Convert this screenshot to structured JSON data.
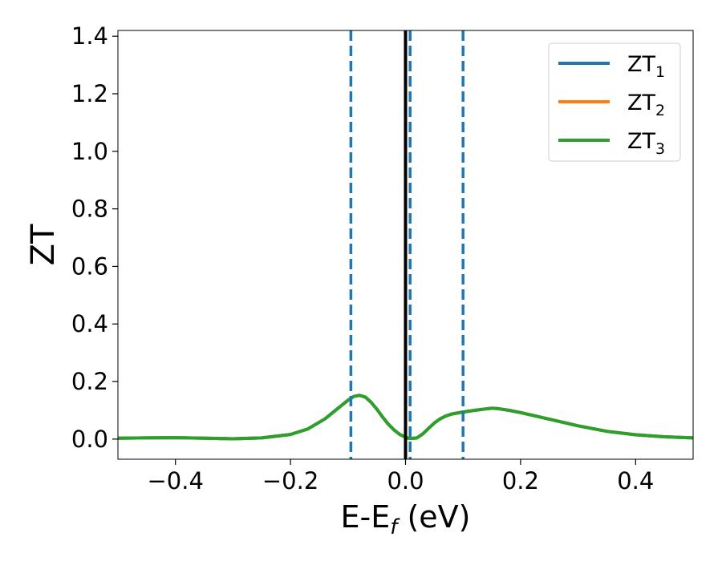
{
  "chart_data": {
    "type": "line",
    "xlabel": {
      "main": "E-E",
      "sub": "f",
      "unit": " (eV)"
    },
    "ylabel": "ZT",
    "xlim": [
      -0.5,
      0.5
    ],
    "ylim": [
      -0.07,
      1.42
    ],
    "xticks": [
      -0.4,
      -0.2,
      0.0,
      0.2,
      0.4
    ],
    "xtick_labels": [
      "−0.4",
      "−0.2",
      "0.0",
      "0.2",
      "0.4"
    ],
    "yticks": [
      0.0,
      0.2,
      0.4,
      0.6,
      0.8,
      1.0,
      1.2,
      1.4
    ],
    "ytick_labels": [
      "0.0",
      "0.2",
      "0.4",
      "0.6",
      "0.8",
      "1.0",
      "1.2",
      "1.4"
    ],
    "grid": false,
    "legend_position": "top-right",
    "legend": [
      {
        "main": "ZT",
        "sub": "1",
        "color": "#1f77b4"
      },
      {
        "main": "ZT",
        "sub": "2",
        "color": "#ff7f0e"
      },
      {
        "main": "ZT",
        "sub": "3",
        "color": "#2ca02c"
      }
    ],
    "vlines": [
      {
        "x": -0.095,
        "style": "dashed",
        "color": "#1f77b4"
      },
      {
        "x": 0.0,
        "style": "solid",
        "color": "#000000"
      },
      {
        "x": 0.008,
        "style": "dashed",
        "color": "#1f77b4"
      },
      {
        "x": 0.1,
        "style": "dashed",
        "color": "#1f77b4"
      }
    ],
    "x": [
      -0.5,
      -0.45,
      -0.4,
      -0.35,
      -0.3,
      -0.25,
      -0.2,
      -0.17,
      -0.14,
      -0.12,
      -0.1,
      -0.09,
      -0.08,
      -0.07,
      -0.06,
      -0.05,
      -0.04,
      -0.03,
      -0.02,
      -0.01,
      0.0,
      0.005,
      0.01,
      0.02,
      0.03,
      0.04,
      0.05,
      0.06,
      0.07,
      0.08,
      0.1,
      0.12,
      0.14,
      0.15,
      0.16,
      0.18,
      0.2,
      0.25,
      0.3,
      0.35,
      0.4,
      0.45,
      0.5
    ],
    "series": [
      {
        "name": "ZT1",
        "color": "#1f77b4",
        "values": [
          0.003,
          0.004,
          0.005,
          0.003,
          0.001,
          0.004,
          0.016,
          0.035,
          0.07,
          0.103,
          0.135,
          0.148,
          0.152,
          0.146,
          0.128,
          0.104,
          0.077,
          0.052,
          0.032,
          0.016,
          0.007,
          0.003,
          0.002,
          0.004,
          0.018,
          0.037,
          0.056,
          0.07,
          0.08,
          0.087,
          0.094,
          0.1,
          0.105,
          0.107,
          0.106,
          0.1,
          0.092,
          0.069,
          0.046,
          0.027,
          0.015,
          0.008,
          0.004
        ]
      },
      {
        "name": "ZT2",
        "color": "#ff7f0e",
        "values": [
          0.003,
          0.004,
          0.005,
          0.003,
          0.001,
          0.004,
          0.016,
          0.035,
          0.07,
          0.103,
          0.135,
          0.148,
          0.152,
          0.146,
          0.128,
          0.104,
          0.077,
          0.052,
          0.032,
          0.016,
          0.007,
          0.003,
          0.002,
          0.004,
          0.018,
          0.037,
          0.056,
          0.07,
          0.08,
          0.087,
          0.094,
          0.1,
          0.105,
          0.107,
          0.106,
          0.1,
          0.092,
          0.069,
          0.046,
          0.027,
          0.015,
          0.008,
          0.004
        ]
      },
      {
        "name": "ZT3",
        "color": "#2ca02c",
        "values": [
          0.003,
          0.004,
          0.005,
          0.003,
          0.001,
          0.004,
          0.016,
          0.035,
          0.07,
          0.103,
          0.135,
          0.148,
          0.152,
          0.146,
          0.128,
          0.104,
          0.077,
          0.052,
          0.032,
          0.016,
          0.007,
          0.003,
          0.002,
          0.004,
          0.018,
          0.037,
          0.056,
          0.07,
          0.08,
          0.087,
          0.094,
          0.1,
          0.105,
          0.107,
          0.106,
          0.1,
          0.092,
          0.069,
          0.046,
          0.027,
          0.015,
          0.008,
          0.004
        ]
      }
    ]
  }
}
